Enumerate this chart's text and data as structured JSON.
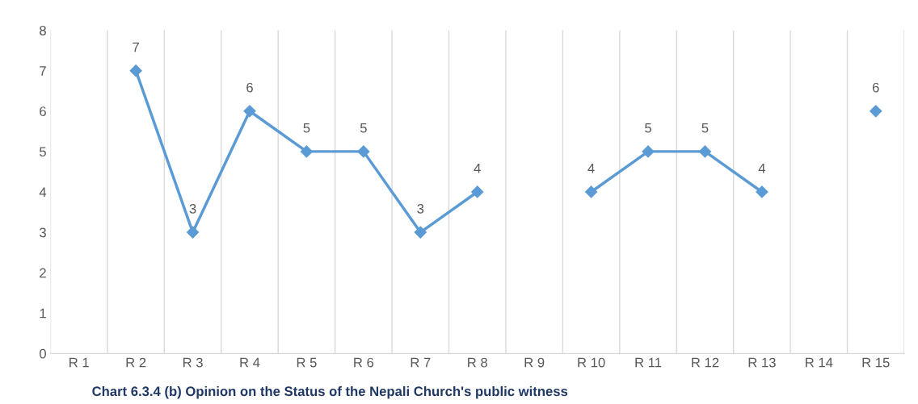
{
  "chart_data": {
    "type": "line",
    "title": "Chart 6.3.4 (b) Opinion on the Status of the Nepali Church's public witness",
    "categories": [
      "R 1",
      "R 2",
      "R 3",
      "R 4",
      "R 5",
      "R 6",
      "R 7",
      "R 8",
      "R 9",
      "R 10",
      "R 11",
      "R 12",
      "R 13",
      "R 14",
      "R 15"
    ],
    "series": [
      {
        "color": "#5b9bd5",
        "values": [
          null,
          7,
          3,
          6,
          5,
          5,
          3,
          4,
          null,
          4,
          5,
          5,
          4,
          null,
          6
        ]
      }
    ],
    "ylim": [
      0,
      8
    ],
    "yticks": [
      0,
      1,
      2,
      3,
      4,
      5,
      6,
      7,
      8
    ],
    "grid": "x",
    "marker": "diamond",
    "line_style": "solid",
    "data_labels": true,
    "legend": false
  }
}
